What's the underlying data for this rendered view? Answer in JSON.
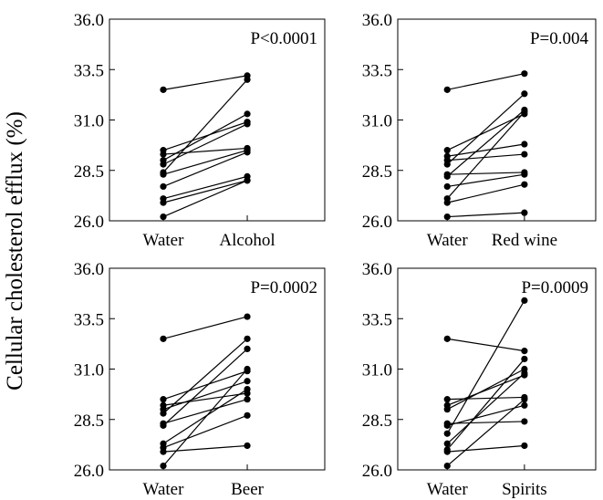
{
  "ylabel": "Cellular cholesterol efflux (%)",
  "chart_data": [
    {
      "type": "line",
      "panel": "top-left",
      "categories": [
        "Water",
        "Alcohol"
      ],
      "annotation": "P<0.0001",
      "ylim": [
        26.0,
        36.0
      ],
      "yticks": [
        "36.0",
        "33.5",
        "31.0",
        "28.5",
        "26.0"
      ],
      "series": [
        {
          "values": [
            32.5,
            33.2
          ]
        },
        {
          "values": [
            29.5,
            30.9
          ]
        },
        {
          "values": [
            29.3,
            29.6
          ]
        },
        {
          "values": [
            29.0,
            31.3
          ]
        },
        {
          "values": [
            28.8,
            30.8
          ]
        },
        {
          "values": [
            28.4,
            33.0
          ]
        },
        {
          "values": [
            28.3,
            29.5
          ]
        },
        {
          "values": [
            27.7,
            29.4
          ]
        },
        {
          "values": [
            27.1,
            28.2
          ]
        },
        {
          "values": [
            26.9,
            28.0
          ]
        },
        {
          "values": [
            26.2,
            28.0
          ]
        }
      ]
    },
    {
      "type": "line",
      "panel": "top-right",
      "categories": [
        "Water",
        "Red wine"
      ],
      "annotation": "P=0.004",
      "ylim": [
        26.0,
        36.0
      ],
      "yticks": [
        "36.0",
        "33.5",
        "31.0",
        "28.5",
        "26.0"
      ],
      "series": [
        {
          "values": [
            32.5,
            33.3
          ]
        },
        {
          "values": [
            29.5,
            31.3
          ]
        },
        {
          "values": [
            29.2,
            29.8
          ]
        },
        {
          "values": [
            29.0,
            29.3
          ]
        },
        {
          "values": [
            28.8,
            32.3
          ]
        },
        {
          "values": [
            28.3,
            28.4
          ]
        },
        {
          "values": [
            28.2,
            31.5
          ]
        },
        {
          "values": [
            27.7,
            28.3
          ]
        },
        {
          "values": [
            27.1,
            31.4
          ]
        },
        {
          "values": [
            26.9,
            27.8
          ]
        },
        {
          "values": [
            26.2,
            26.4
          ]
        }
      ]
    },
    {
      "type": "line",
      "panel": "bottom-left",
      "categories": [
        "Water",
        "Beer"
      ],
      "annotation": "P=0.0002",
      "ylim": [
        26.0,
        36.0
      ],
      "yticks": [
        "36.0",
        "33.5",
        "31.0",
        "28.5",
        "26.0"
      ],
      "series": [
        {
          "values": [
            32.5,
            33.6
          ]
        },
        {
          "values": [
            29.5,
            30.9
          ]
        },
        {
          "values": [
            29.2,
            29.8
          ]
        },
        {
          "values": [
            29.0,
            30.4
          ]
        },
        {
          "values": [
            28.8,
            32.5
          ]
        },
        {
          "values": [
            28.3,
            29.5
          ]
        },
        {
          "values": [
            28.2,
            32.0
          ]
        },
        {
          "values": [
            27.3,
            30.0
          ]
        },
        {
          "values": [
            27.1,
            28.7
          ]
        },
        {
          "values": [
            26.9,
            27.2
          ]
        },
        {
          "values": [
            26.2,
            31.0
          ]
        }
      ]
    },
    {
      "type": "line",
      "panel": "bottom-right",
      "categories": [
        "Water",
        "Spirits"
      ],
      "annotation": "P=0.0009",
      "ylim": [
        26.0,
        36.0
      ],
      "yticks": [
        "36.0",
        "33.5",
        "31.0",
        "28.5",
        "26.0"
      ],
      "series": [
        {
          "values": [
            32.5,
            31.9
          ]
        },
        {
          "values": [
            29.5,
            29.6
          ]
        },
        {
          "values": [
            29.2,
            30.7
          ]
        },
        {
          "values": [
            29.0,
            31.0
          ]
        },
        {
          "values": [
            28.3,
            28.4
          ]
        },
        {
          "values": [
            28.2,
            29.2
          ]
        },
        {
          "values": [
            27.8,
            34.4
          ]
        },
        {
          "values": [
            27.3,
            30.8
          ]
        },
        {
          "values": [
            27.0,
            31.5
          ]
        },
        {
          "values": [
            26.9,
            27.2
          ]
        },
        {
          "values": [
            26.2,
            29.5
          ]
        }
      ]
    }
  ]
}
